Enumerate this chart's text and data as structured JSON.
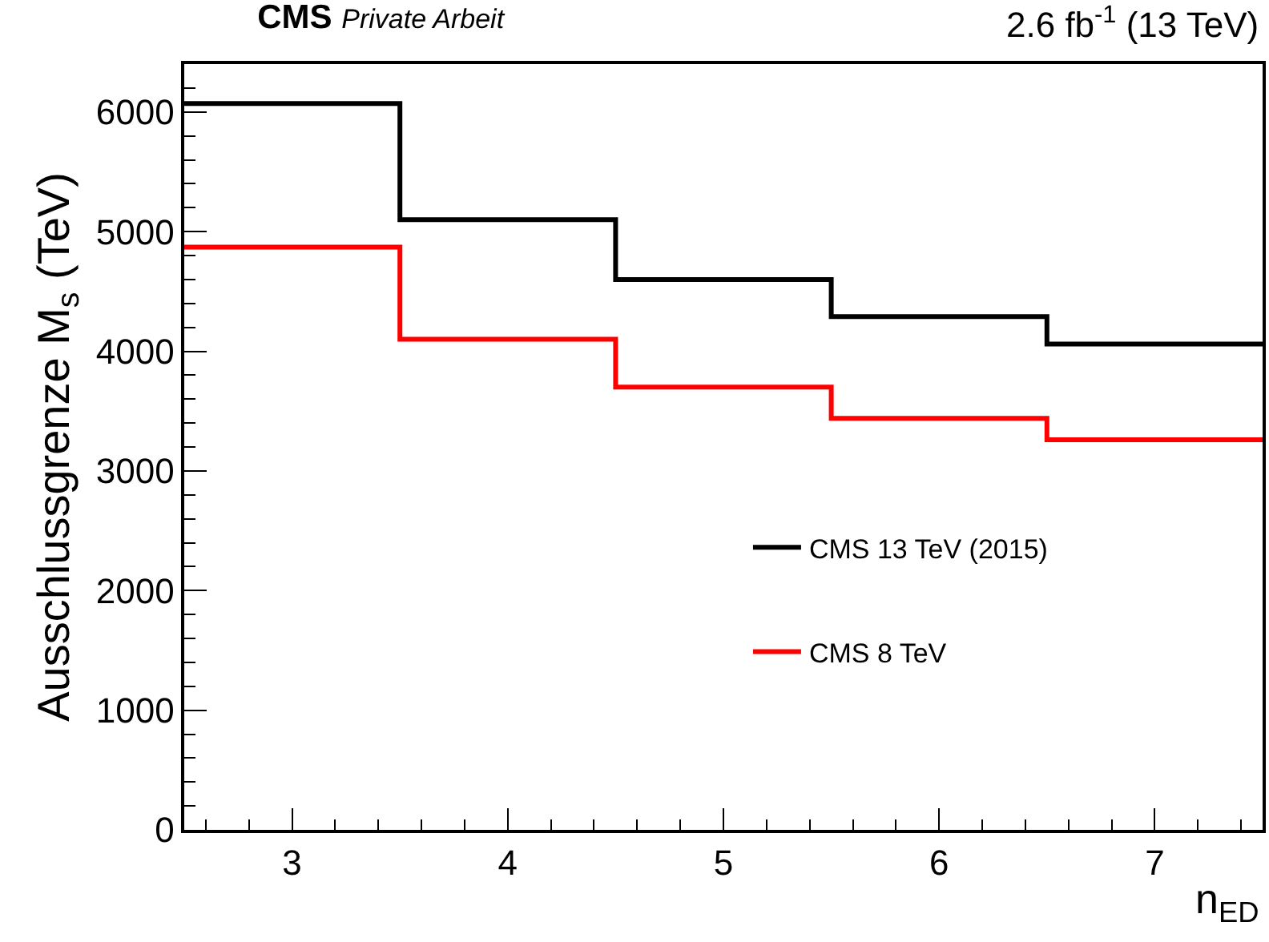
{
  "chart_data": {
    "type": "histogram",
    "title": "CMS",
    "subtitle": "Private Arbeit",
    "annotations": [
      "2.6 fb$^{-1}$ (13 TeV)"
    ],
    "xlabel": "n$_{ED}$",
    "ylabel": "Ausschlussgrenze M$_{s}$ (TeV)",
    "bins": [
      2.5,
      3.5,
      4.5,
      5.5,
      6.5,
      7.5
    ],
    "series": [
      {
        "name": "CMS 13 TeV (2015)",
        "color": "#000000",
        "values": [
          6070,
          5100,
          4600,
          4290,
          4060
        ]
      },
      {
        "name": "CMS 8 TeV",
        "color": "#ff0000",
        "values": [
          4870,
          4100,
          3700,
          3440,
          3260
        ]
      }
    ],
    "xlim": [
      2.5,
      7.5
    ],
    "xticks": [
      3,
      4,
      5,
      6,
      7
    ],
    "ylim": [
      0,
      6400
    ],
    "yticks": [
      0,
      1000,
      2000,
      3000,
      4000,
      5000,
      6000
    ],
    "grid": false,
    "legend": "right"
  }
}
